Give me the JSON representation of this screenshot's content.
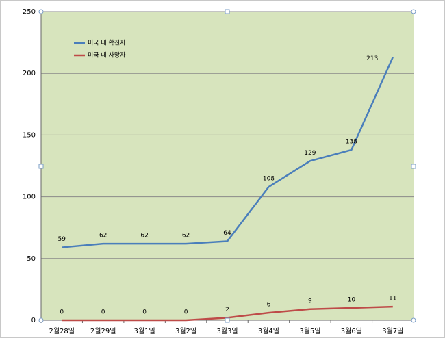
{
  "chart_data": {
    "type": "line",
    "categories": [
      "2월28일",
      "2월29일",
      "3월1일",
      "3월2일",
      "3월3일",
      "3월4일",
      "3월5일",
      "3월6일",
      "3월7일"
    ],
    "series": [
      {
        "name": "미국 내 확진자",
        "color": "#4a7ebb",
        "values": [
          59,
          62,
          62,
          62,
          64,
          108,
          129,
          138,
          213
        ]
      },
      {
        "name": "미국 내 사망자",
        "color": "#be4b48",
        "values": [
          0,
          0,
          0,
          0,
          2,
          6,
          9,
          10,
          11
        ]
      }
    ],
    "ylim": [
      0,
      250
    ],
    "yticks": [
      0,
      50,
      100,
      150,
      200,
      250
    ],
    "grid": true,
    "legend": "top-left"
  }
}
